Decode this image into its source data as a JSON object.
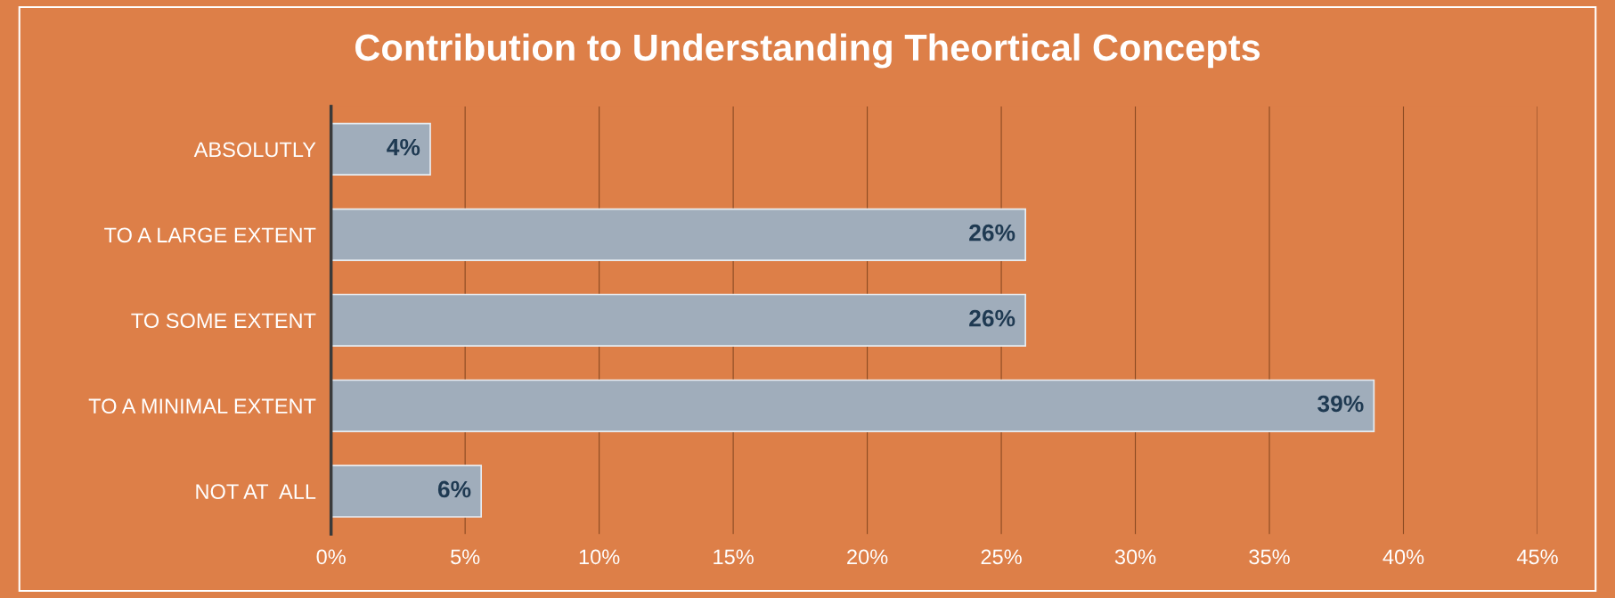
{
  "chart_data": {
    "type": "bar",
    "orientation": "horizontal",
    "title": "Contribution to Understanding Theortical Concepts",
    "categories": [
      "ABSOLUTLY",
      "TO A LARGE EXTENT",
      "TO SOME EXTENT",
      "TO A MINIMAL EXTENT",
      "NOT AT  ALL"
    ],
    "values": [
      3.7,
      25.9,
      25.9,
      38.9,
      5.6
    ],
    "value_labels": [
      "4%",
      "26%",
      "26%",
      "39%",
      "6%"
    ],
    "color": "#a0adbb",
    "xlim": [
      0,
      45
    ],
    "xticks": [
      {
        "value": 0,
        "label": "0%"
      },
      {
        "value": 5,
        "label": "5%"
      },
      {
        "value": 10,
        "label": "10%"
      },
      {
        "value": 15,
        "label": "15%"
      },
      {
        "value": 20,
        "label": "20%"
      },
      {
        "value": 25,
        "label": "25%"
      },
      {
        "value": 30,
        "label": "30%"
      },
      {
        "value": 35,
        "label": "35%"
      },
      {
        "value": 40,
        "label": "40%"
      },
      {
        "value": 45,
        "label": "45%"
      }
    ],
    "grid": "x",
    "legend": false
  }
}
